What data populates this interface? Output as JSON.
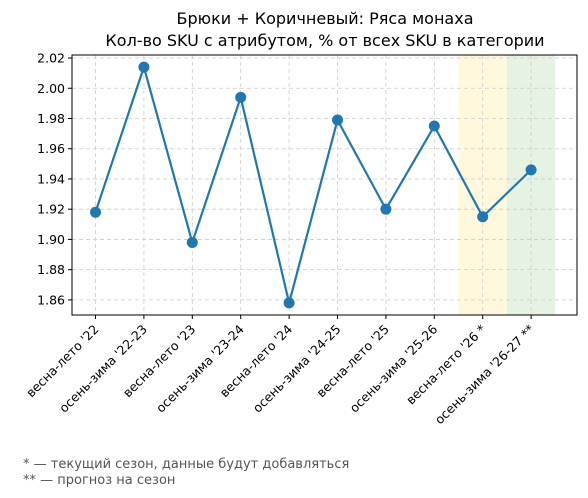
{
  "chart_data": {
    "type": "line",
    "title": "Брюки + Коричневый: Ряса монаха",
    "subtitle": "Кол-во SKU с атрибутом, % от всех SKU в категории",
    "categories": [
      "весна-лето '22",
      "осень-зима '22-23",
      "весна-лето '23",
      "осень-зима '23-24",
      "весна-лето '24",
      "осень-зима '24-25",
      "весна-лето '25",
      "осень-зима '25-26",
      "весна-лето '26 *",
      "осень-зима '26-27 **"
    ],
    "values": [
      1.918,
      2.014,
      1.898,
      1.994,
      1.858,
      1.979,
      1.92,
      1.975,
      1.915,
      1.946
    ],
    "ylim": [
      1.85,
      2.022
    ],
    "yticks": [
      "1.86",
      "1.88",
      "1.90",
      "1.92",
      "1.94",
      "1.96",
      "1.98",
      "2.00",
      "2.02"
    ],
    "grid": true,
    "highlights": [
      {
        "category": "весна-лето '26 *",
        "color": "#fff8dc"
      },
      {
        "category": "осень-зима '26-27 **",
        "color": "#e6f2e2"
      }
    ],
    "line_color": "#1f77b4"
  },
  "footnotes": [
    "* — текущий сезон, данные будут добавляться",
    "** — прогноз на сезон"
  ]
}
